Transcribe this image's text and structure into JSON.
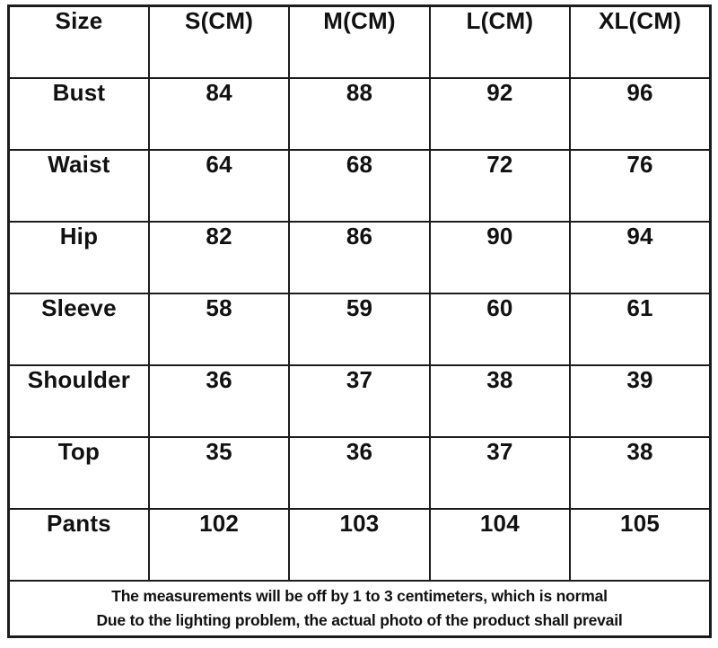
{
  "table": {
    "header": [
      "Size",
      "S(CM)",
      "M(CM)",
      "L(CM)",
      "XL(CM)"
    ],
    "rows": [
      {
        "label": "Bust",
        "values": [
          "84",
          "88",
          "92",
          "96"
        ]
      },
      {
        "label": "Waist",
        "values": [
          "64",
          "68",
          "72",
          "76"
        ]
      },
      {
        "label": "Hip",
        "values": [
          "82",
          "86",
          "90",
          "94"
        ]
      },
      {
        "label": "Sleeve",
        "values": [
          "58",
          "59",
          "60",
          "61"
        ]
      },
      {
        "label": "Shoulder",
        "values": [
          "36",
          "37",
          "38",
          "39"
        ]
      },
      {
        "label": "Top",
        "values": [
          "35",
          "36",
          "37",
          "38"
        ]
      },
      {
        "label": "Pants",
        "values": [
          "102",
          "103",
          "104",
          "105"
        ]
      }
    ],
    "footer_lines": [
      "The measurements will be off by 1 to 3 centimeters, which is normal",
      "Due to the lighting problem, the actual photo of the product shall prevail"
    ]
  },
  "colors": {
    "border": "#1c1c1c",
    "text": "#111111",
    "background": "#ffffff"
  }
}
